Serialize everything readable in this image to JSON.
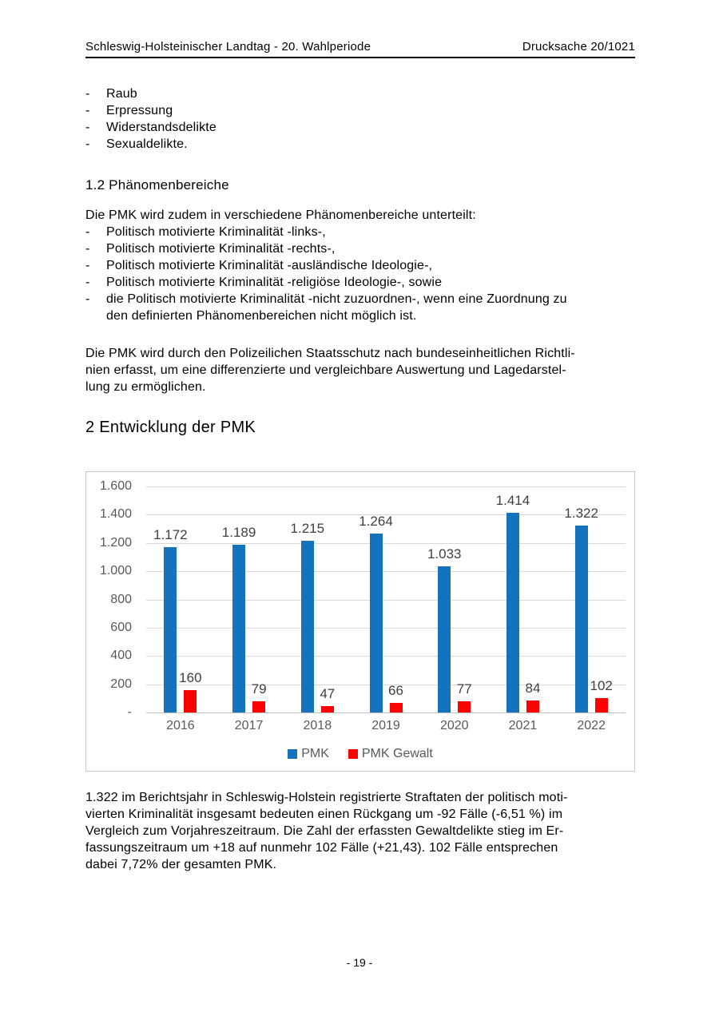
{
  "header": {
    "left": "Schleswig-Holsteinischer Landtag - 20. Wahlperiode",
    "right": "Drucksache 20/1021"
  },
  "bullet": "-",
  "delikte_list": [
    "Raub",
    "Erpressung",
    "Widerstandsdelikte",
    "Sexualdelikte."
  ],
  "phaenomen": {
    "heading": "1.2 Phänomenbereiche",
    "intro": "Die PMK wird zudem in verschiedene Phänomenbereiche unterteilt:",
    "items": [
      {
        "text": "Politisch motivierte Kriminalität -links-,"
      },
      {
        "text": "Politisch motivierte Kriminalität -rechts-,"
      },
      {
        "text": "Politisch motivierte Kriminalität -ausländische Ideologie-,"
      },
      {
        "text": "Politisch motivierte Kriminalität -religiöse Ideologie-, sowie"
      },
      {
        "text": "die Politisch motivierte Kriminalität -nicht zuzuordnen-, wenn eine Zuordnung zu",
        "continuation": "den definierten Phänomenbereichen nicht möglich ist."
      }
    ],
    "paragraph_lines": [
      "Die PMK wird durch den Polizeilichen Staatsschutz nach bundeseinheitlichen Richtli-",
      "nien erfasst, um eine differenzierte und vergleichbare Auswertung und Lagedarstel-",
      "lung zu ermöglichen."
    ]
  },
  "entwicklung": {
    "heading": "2 Entwicklung der PMK",
    "paragraph_lines": [
      "1.322 im Berichtsjahr in Schleswig-Holstein registrierte Straftaten der politisch moti-",
      "vierten Kriminalität insgesamt bedeuten einen Rückgang um -92 Fälle (-6,51 %) im",
      "Vergleich zum Vorjahreszeitraum. Die Zahl der erfassten Gewaltdelikte stieg im Er-",
      "fassungszeitraum um +18 auf nunmehr 102 Fälle (+21,43). 102 Fälle entsprechen",
      "dabei 7,72% der gesamten PMK."
    ]
  },
  "chart_data": {
    "type": "bar",
    "title": "",
    "categories": [
      "2016",
      "2017",
      "2018",
      "2019",
      "2020",
      "2021",
      "2022"
    ],
    "series": [
      {
        "name": "PMK",
        "color": "#1473bc",
        "values": [
          1172,
          1189,
          1215,
          1264,
          1033,
          1414,
          1322
        ],
        "labels": [
          "1.172",
          "1.189",
          "1.215",
          "1.264",
          "1.033",
          "1.414",
          "1.322"
        ]
      },
      {
        "name": "PMK Gewalt",
        "color": "#fe0000",
        "values": [
          160,
          79,
          47,
          66,
          77,
          84,
          102
        ],
        "labels": [
          "160",
          "79",
          "47",
          "66",
          "77",
          "84",
          "102"
        ]
      }
    ],
    "ylim": [
      0,
      1600
    ],
    "ytick_step": 200,
    "ytick_labels": [
      "1.600",
      "1.400",
      "1.200",
      "1.000",
      "800",
      "600",
      "400",
      "200",
      "-"
    ],
    "grid": true,
    "legend_position": "bottom",
    "gridline_color": "#d9d9d9",
    "tick_label_color": "#595959",
    "data_label_color": "#404040"
  },
  "footer": "- 19 -"
}
